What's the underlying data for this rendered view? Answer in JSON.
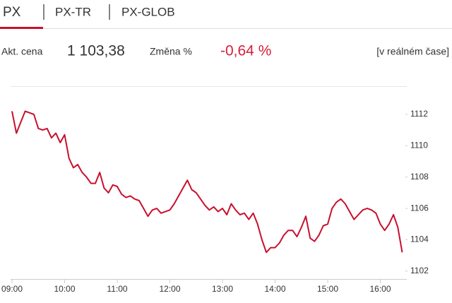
{
  "tabs": [
    "PX",
    "PX-TR",
    "PX-GLOB"
  ],
  "quote": {
    "price_label": "Akt. cena",
    "price": "1 103,38",
    "change_label": "Změna %",
    "change": "-0,64 %",
    "realtime": "[v reálném čase]"
  },
  "chart_data": {
    "type": "line",
    "color": "#c8102e",
    "x": [
      "09:00",
      "09:05",
      "09:10",
      "09:15",
      "09:20",
      "09:25",
      "09:30",
      "09:35",
      "09:40",
      "09:45",
      "09:50",
      "09:55",
      "10:00",
      "10:05",
      "10:10",
      "10:15",
      "10:20",
      "10:25",
      "10:30",
      "10:35",
      "10:40",
      "10:45",
      "10:50",
      "10:55",
      "11:00",
      "11:05",
      "11:10",
      "11:15",
      "11:20",
      "11:25",
      "11:30",
      "11:35",
      "11:40",
      "11:45",
      "11:50",
      "11:55",
      "12:00",
      "12:05",
      "12:10",
      "12:15",
      "12:20",
      "12:25",
      "12:30",
      "12:35",
      "12:40",
      "12:45",
      "12:50",
      "12:55",
      "13:00",
      "13:05",
      "13:10",
      "13:15",
      "13:20",
      "13:25",
      "13:30",
      "13:35",
      "13:40",
      "13:45",
      "13:50",
      "13:55",
      "14:00",
      "14:05",
      "14:10",
      "14:15",
      "14:20",
      "14:25",
      "14:30",
      "14:35",
      "14:40",
      "14:45",
      "14:50",
      "14:55",
      "15:00",
      "15:05",
      "15:10",
      "15:15",
      "15:20",
      "15:25",
      "15:30",
      "15:35",
      "15:40",
      "15:45",
      "15:50",
      "15:55",
      "16:00",
      "16:05",
      "16:10",
      "16:15",
      "16:20",
      "16:25"
    ],
    "values": [
      1112.2,
      1110.8,
      1111.5,
      1112.2,
      1112.1,
      1112.0,
      1111.1,
      1111.0,
      1111.1,
      1110.5,
      1110.8,
      1110.2,
      1110.7,
      1109.2,
      1108.6,
      1108.8,
      1108.3,
      1108.0,
      1107.6,
      1107.6,
      1108.3,
      1107.3,
      1107.0,
      1107.5,
      1107.4,
      1106.9,
      1106.7,
      1106.8,
      1106.6,
      1106.5,
      1106.0,
      1105.5,
      1105.9,
      1106.0,
      1105.7,
      1105.8,
      1105.9,
      1106.3,
      1106.8,
      1107.3,
      1107.8,
      1107.2,
      1107.0,
      1106.6,
      1106.2,
      1105.9,
      1106.1,
      1105.8,
      1106.0,
      1105.6,
      1106.3,
      1105.9,
      1105.6,
      1105.7,
      1105.3,
      1105.7,
      1105.0,
      1104.0,
      1103.2,
      1103.5,
      1103.5,
      1103.8,
      1104.3,
      1104.6,
      1104.6,
      1104.2,
      1104.8,
      1105.5,
      1104.1,
      1103.9,
      1104.3,
      1104.9,
      1105.0,
      1106.0,
      1106.4,
      1106.6,
      1106.3,
      1105.8,
      1105.3,
      1105.6,
      1105.9,
      1106.0,
      1105.9,
      1105.7,
      1105.0,
      1104.6,
      1105.0,
      1105.6,
      1104.8,
      1103.2
    ],
    "ylim": [
      1101.5,
      1113.8
    ],
    "yticks": [
      1102,
      1104,
      1106,
      1108,
      1110,
      1112
    ],
    "xticks": [
      "09:00",
      "10:00",
      "11:00",
      "12:00",
      "13:00",
      "14:00",
      "15:00",
      "16:00"
    ]
  }
}
